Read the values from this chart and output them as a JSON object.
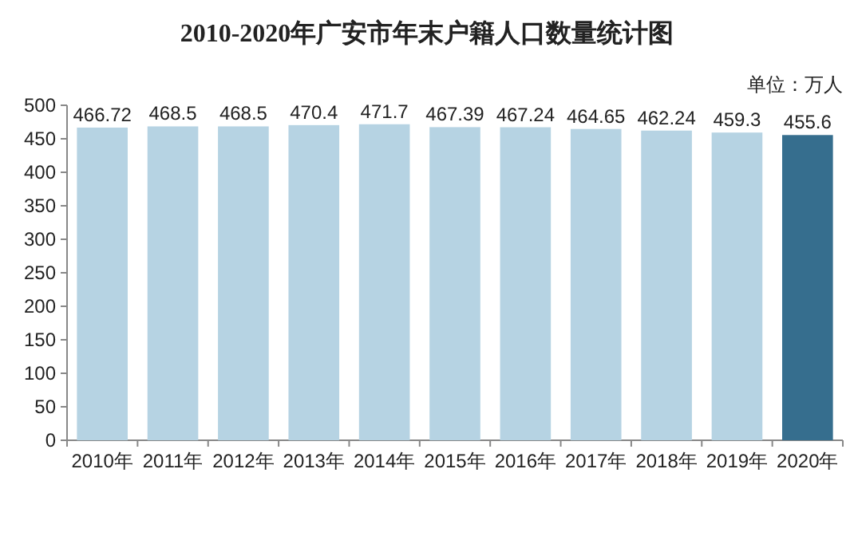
{
  "chart_data": {
    "type": "bar",
    "title": "2010-2020年广安市年末户籍人口数量统计图",
    "annotations": [
      "单位：万人"
    ],
    "categories": [
      "2010年",
      "2011年",
      "2012年",
      "2013年",
      "2014年",
      "2015年",
      "2016年",
      "2017年",
      "2018年",
      "2019年",
      "2020年"
    ],
    "values": [
      466.72,
      468.5,
      468.5,
      470.4,
      471.7,
      467.39,
      467.24,
      464.65,
      462.24,
      459.3,
      455.6
    ],
    "colors": [
      "#b6d3e3",
      "#b6d3e3",
      "#b6d3e3",
      "#b6d3e3",
      "#b6d3e3",
      "#b6d3e3",
      "#b6d3e3",
      "#b6d3e3",
      "#b6d3e3",
      "#b6d3e3",
      "#366e8e"
    ],
    "ylim": [
      0,
      500
    ],
    "yticks": [
      0,
      50,
      100,
      150,
      200,
      250,
      300,
      350,
      400,
      450,
      500
    ],
    "data_labels": true
  }
}
